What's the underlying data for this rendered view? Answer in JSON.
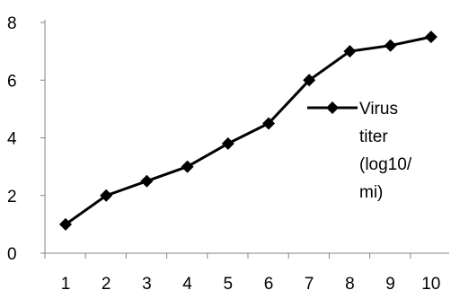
{
  "chart_data": {
    "type": "line",
    "x": [
      1,
      2,
      3,
      4,
      5,
      6,
      7,
      8,
      9,
      10
    ],
    "series": [
      {
        "name": "Virus titer (log10/ mi)",
        "legend_lines": [
          "Virus",
          "titer",
          "(log10/",
          "mi)"
        ],
        "values": [
          1,
          2,
          2.5,
          3,
          3.8,
          4.5,
          6,
          7,
          7.2,
          7.5
        ],
        "color": "#000000",
        "marker": "diamond"
      }
    ],
    "x_ticks": [
      "1",
      "2",
      "3",
      "4",
      "5",
      "6",
      "7",
      "8",
      "9",
      "10"
    ],
    "y_ticks": [
      "0",
      "2",
      "4",
      "6",
      "8"
    ],
    "ylim": [
      0,
      8
    ],
    "grid": false,
    "legend_position": "right"
  }
}
